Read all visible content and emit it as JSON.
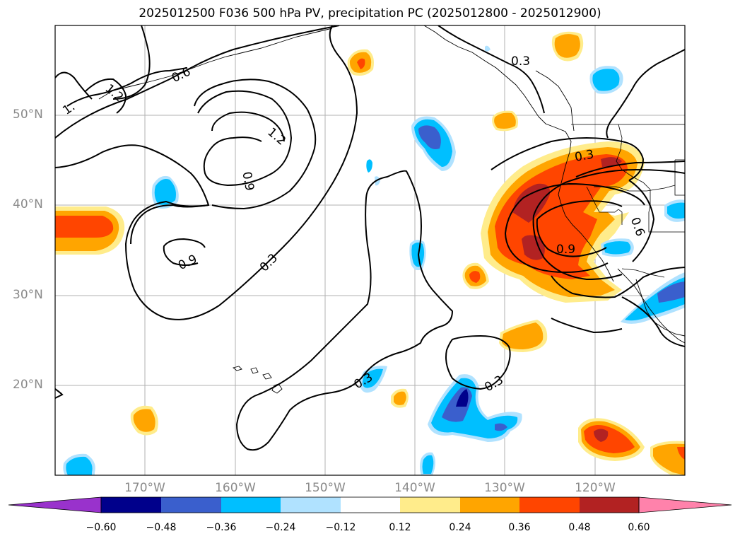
{
  "title": "2025012500 F036 500 hPa PV, precipitation PC (2025012800 - 2025012900)",
  "map": {
    "lat_labels": [
      "50°N",
      "40°N",
      "30°N",
      "20°N"
    ],
    "lon_labels": [
      "170°W",
      "160°W",
      "150°W",
      "140°W",
      "130°W",
      "120°W"
    ],
    "contour_labels": [
      "0.6",
      "1.2",
      "1.",
      "1.2",
      "0.9",
      "0.9",
      "0.3",
      "0.3",
      "0.3",
      "0.3",
      "0.3",
      "0.9",
      "0.6"
    ]
  },
  "colorbar": {
    "ticks": [
      "−0.60",
      "−0.48",
      "−0.36",
      "−0.24",
      "−0.12",
      "0.12",
      "0.24",
      "0.36",
      "0.48",
      "0.60"
    ],
    "colors": [
      "#9932cc",
      "#00008b",
      "#3a5fcd",
      "#00bfff",
      "#b0e2ff",
      "#ffffff",
      "#ffec8b",
      "#ffa500",
      "#ff4500",
      "#b22222",
      "#ff82ab"
    ]
  }
}
